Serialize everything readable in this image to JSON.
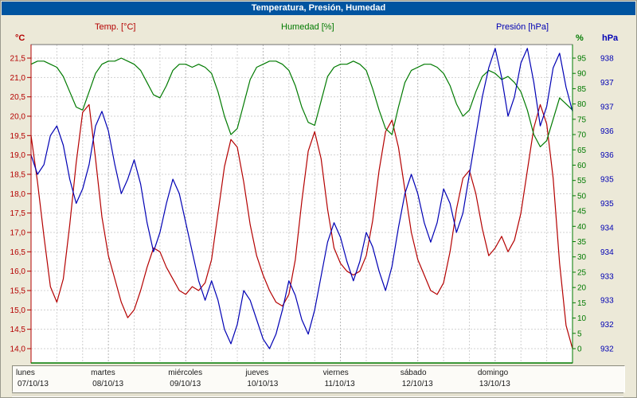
{
  "window": {
    "title": "Temperatura, Presión, Humedad"
  },
  "legend": [
    {
      "label": "Temp. [°C]",
      "color": "#b40000"
    },
    {
      "label": "Humedad [%]",
      "color": "#007a00"
    },
    {
      "label": "Presión [hPa]",
      "color": "#0000b4"
    }
  ],
  "axes": {
    "temp": {
      "unit": "°C",
      "color": "#b40000",
      "min": 14.0,
      "max": 21.5,
      "step": 0.5,
      "decimal_separator": "comma"
    },
    "humidity": {
      "unit": "%",
      "color": "#007a00",
      "min": 0,
      "max": 95,
      "step": 5
    },
    "pressure": {
      "unit": "hPa",
      "color": "#0000b4",
      "min": 932,
      "max": 938,
      "step": 0.5,
      "tick_labels": [
        "938",
        "937",
        "937",
        "936",
        "936",
        "935",
        "935",
        "934",
        "934",
        "933",
        "933",
        "932",
        "932"
      ]
    }
  },
  "x_axis": {
    "days": [
      {
        "name": "lunes",
        "date": "07/10/13"
      },
      {
        "name": "martes",
        "date": "08/10/13"
      },
      {
        "name": "miércoles",
        "date": "09/10/13"
      },
      {
        "name": "jueves",
        "date": "10/10/13"
      },
      {
        "name": "viernes",
        "date": "11/10/13"
      },
      {
        "name": "sábado",
        "date": "12/10/13"
      },
      {
        "name": "domingo",
        "date": "13/10/13"
      }
    ]
  },
  "chart_data": {
    "type": "line",
    "title": "Temperatura, Presión, Humedad",
    "x_unit": "hours",
    "x_range_hours": [
      0,
      168
    ],
    "grid": true,
    "x": [
      0,
      2,
      4,
      6,
      8,
      10,
      12,
      14,
      16,
      18,
      20,
      22,
      24,
      26,
      28,
      30,
      32,
      34,
      36,
      38,
      40,
      42,
      44,
      46,
      48,
      50,
      52,
      54,
      56,
      58,
      60,
      62,
      64,
      66,
      68,
      70,
      72,
      74,
      76,
      78,
      80,
      82,
      84,
      86,
      88,
      90,
      92,
      94,
      96,
      98,
      100,
      102,
      104,
      106,
      108,
      110,
      112,
      114,
      116,
      118,
      120,
      122,
      124,
      126,
      128,
      130,
      132,
      134,
      136,
      138,
      140,
      142,
      144,
      146,
      148,
      150,
      152,
      154,
      156,
      158,
      160,
      162,
      164,
      166,
      168
    ],
    "series": [
      {
        "name": "Temp. [°C]",
        "color": "#b40000",
        "axis": "temp",
        "ylim": [
          14.0,
          21.5
        ],
        "values": [
          19.5,
          18.3,
          16.9,
          15.6,
          15.2,
          15.8,
          17.2,
          18.8,
          20.1,
          20.3,
          18.9,
          17.4,
          16.4,
          15.8,
          15.2,
          14.8,
          15.0,
          15.5,
          16.1,
          16.6,
          16.5,
          16.1,
          15.8,
          15.5,
          15.4,
          15.6,
          15.5,
          15.7,
          16.3,
          17.5,
          18.7,
          19.4,
          19.2,
          18.3,
          17.2,
          16.4,
          15.9,
          15.5,
          15.2,
          15.1,
          15.4,
          16.3,
          17.8,
          19.1,
          19.6,
          18.9,
          17.6,
          16.6,
          16.2,
          16.0,
          15.9,
          16.0,
          16.4,
          17.3,
          18.6,
          19.6,
          19.9,
          19.2,
          18.1,
          17.0,
          16.3,
          15.9,
          15.5,
          15.4,
          15.7,
          16.5,
          17.6,
          18.4,
          18.6,
          18.0,
          17.1,
          16.4,
          16.6,
          16.9,
          16.5,
          16.8,
          17.5,
          18.6,
          19.7,
          20.3,
          19.8,
          18.4,
          16.2,
          14.6,
          14.0
        ]
      },
      {
        "name": "Humedad [%]",
        "color": "#007a00",
        "axis": "humidity",
        "ylim": [
          0,
          95
        ],
        "values": [
          93,
          94,
          94,
          93,
          92,
          89,
          84,
          79,
          78,
          84,
          90,
          93,
          94,
          94,
          95,
          94,
          93,
          91,
          87,
          83,
          82,
          86,
          91,
          93,
          93,
          92,
          93,
          92,
          90,
          84,
          76,
          70,
          72,
          80,
          88,
          92,
          93,
          94,
          94,
          93,
          91,
          86,
          79,
          74,
          73,
          81,
          89,
          92,
          93,
          93,
          94,
          93,
          91,
          85,
          78,
          72,
          70,
          79,
          87,
          91,
          92,
          93,
          93,
          92,
          90,
          86,
          80,
          76,
          78,
          84,
          89,
          91,
          90,
          88,
          89,
          87,
          84,
          78,
          70,
          66,
          68,
          75,
          82,
          80,
          78
        ]
      },
      {
        "name": "Presión [hPa]",
        "color": "#0000b4",
        "axis": "pressure",
        "ylim": [
          932,
          938
        ],
        "values": [
          936.0,
          935.6,
          935.8,
          936.4,
          936.6,
          936.2,
          935.5,
          935.0,
          935.3,
          935.8,
          936.6,
          936.9,
          936.5,
          935.8,
          935.2,
          935.5,
          935.9,
          935.4,
          934.6,
          934.0,
          934.4,
          935.0,
          935.5,
          935.2,
          934.6,
          934.0,
          933.4,
          933.0,
          933.4,
          933.0,
          932.4,
          932.1,
          932.5,
          933.2,
          933.0,
          932.6,
          932.2,
          932.0,
          932.3,
          932.8,
          933.4,
          933.1,
          932.6,
          932.3,
          932.8,
          933.5,
          934.2,
          934.6,
          934.3,
          933.8,
          933.4,
          933.8,
          934.4,
          934.1,
          933.6,
          933.2,
          933.7,
          934.5,
          935.2,
          935.6,
          935.2,
          934.6,
          934.2,
          934.6,
          935.3,
          935.0,
          934.4,
          934.8,
          935.6,
          936.4,
          937.2,
          937.8,
          938.2,
          937.6,
          936.8,
          937.2,
          937.9,
          938.2,
          937.5,
          936.6,
          937.0,
          937.8,
          938.1,
          937.4,
          936.9
        ]
      }
    ]
  }
}
